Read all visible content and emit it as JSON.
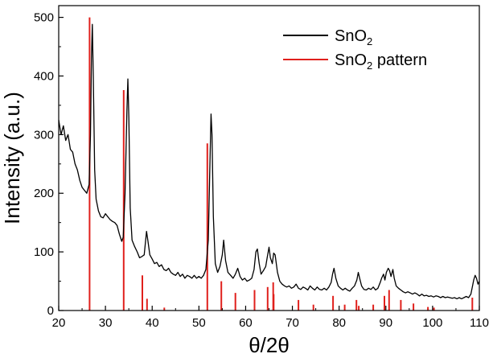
{
  "chart_data": {
    "type": "line",
    "xlabel": "θ/2θ",
    "ylabel": "Intensity (a.u.)",
    "xlim": [
      20,
      110
    ],
    "ylim": [
      0,
      520
    ],
    "xticks": [
      20,
      30,
      40,
      50,
      60,
      70,
      80,
      90,
      100,
      110
    ],
    "yticks": [
      0,
      100,
      200,
      300,
      400,
      500
    ],
    "grid": false,
    "legend": {
      "placement": "top-right",
      "entries": [
        {
          "series_index": 0,
          "name": "SnO",
          "subscript": "2",
          "suffix": ""
        },
        {
          "series_index": 1,
          "name": "SnO",
          "subscript": "2",
          "suffix": " pattern"
        }
      ]
    },
    "series": [
      {
        "name": "SnO2",
        "kind": "line",
        "color": "#000000",
        "points": [
          [
            20.0,
            325
          ],
          [
            20.5,
            300
          ],
          [
            21.0,
            315
          ],
          [
            21.5,
            290
          ],
          [
            22.0,
            300
          ],
          [
            22.5,
            275
          ],
          [
            23.0,
            270
          ],
          [
            23.5,
            250
          ],
          [
            24.0,
            240
          ],
          [
            24.5,
            222
          ],
          [
            25.0,
            210
          ],
          [
            25.5,
            205
          ],
          [
            26.0,
            200
          ],
          [
            26.5,
            215
          ],
          [
            26.8,
            300
          ],
          [
            27.0,
            430
          ],
          [
            27.2,
            488
          ],
          [
            27.4,
            400
          ],
          [
            27.7,
            240
          ],
          [
            28.0,
            190
          ],
          [
            28.5,
            170
          ],
          [
            29.0,
            160
          ],
          [
            29.5,
            158
          ],
          [
            30.0,
            165
          ],
          [
            30.5,
            160
          ],
          [
            31.0,
            155
          ],
          [
            31.5,
            152
          ],
          [
            32.0,
            150
          ],
          [
            32.5,
            145
          ],
          [
            33.0,
            130
          ],
          [
            33.5,
            118
          ],
          [
            33.8,
            125
          ],
          [
            34.2,
            200
          ],
          [
            34.6,
            340
          ],
          [
            34.8,
            395
          ],
          [
            35.0,
            330
          ],
          [
            35.3,
            175
          ],
          [
            35.7,
            120
          ],
          [
            36.2,
            110
          ],
          [
            36.8,
            100
          ],
          [
            37.3,
            90
          ],
          [
            37.8,
            92
          ],
          [
            38.3,
            95
          ],
          [
            38.8,
            135
          ],
          [
            39.1,
            118
          ],
          [
            39.5,
            95
          ],
          [
            40.0,
            88
          ],
          [
            40.5,
            80
          ],
          [
            41.0,
            82
          ],
          [
            41.5,
            75
          ],
          [
            42.0,
            78
          ],
          [
            42.5,
            70
          ],
          [
            43.0,
            68
          ],
          [
            43.5,
            72
          ],
          [
            44.0,
            65
          ],
          [
            44.5,
            62
          ],
          [
            45.0,
            60
          ],
          [
            45.5,
            65
          ],
          [
            46.0,
            58
          ],
          [
            46.5,
            62
          ],
          [
            47.0,
            55
          ],
          [
            47.5,
            60
          ],
          [
            48.0,
            58
          ],
          [
            48.5,
            55
          ],
          [
            49.0,
            60
          ],
          [
            49.5,
            55
          ],
          [
            50.0,
            58
          ],
          [
            50.5,
            55
          ],
          [
            51.0,
            60
          ],
          [
            51.5,
            70
          ],
          [
            52.0,
            120
          ],
          [
            52.3,
            230
          ],
          [
            52.6,
            335
          ],
          [
            52.8,
            300
          ],
          [
            53.1,
            160
          ],
          [
            53.5,
            80
          ],
          [
            54.0,
            65
          ],
          [
            54.5,
            75
          ],
          [
            55.0,
            95
          ],
          [
            55.3,
            120
          ],
          [
            55.7,
            85
          ],
          [
            56.2,
            65
          ],
          [
            56.8,
            60
          ],
          [
            57.3,
            55
          ],
          [
            57.8,
            62
          ],
          [
            58.3,
            72
          ],
          [
            58.8,
            58
          ],
          [
            59.3,
            52
          ],
          [
            59.8,
            55
          ],
          [
            60.3,
            50
          ],
          [
            60.8,
            52
          ],
          [
            61.3,
            55
          ],
          [
            61.8,
            70
          ],
          [
            62.2,
            100
          ],
          [
            62.5,
            105
          ],
          [
            62.9,
            80
          ],
          [
            63.3,
            62
          ],
          [
            63.8,
            68
          ],
          [
            64.3,
            75
          ],
          [
            64.6,
            90
          ],
          [
            65.0,
            108
          ],
          [
            65.3,
            90
          ],
          [
            65.7,
            80
          ],
          [
            66.0,
            98
          ],
          [
            66.3,
            95
          ],
          [
            66.8,
            65
          ],
          [
            67.3,
            50
          ],
          [
            67.8,
            45
          ],
          [
            68.3,
            42
          ],
          [
            68.8,
            40
          ],
          [
            69.3,
            42
          ],
          [
            69.8,
            38
          ],
          [
            70.3,
            40
          ],
          [
            70.8,
            45
          ],
          [
            71.3,
            38
          ],
          [
            71.8,
            36
          ],
          [
            72.3,
            40
          ],
          [
            72.8,
            38
          ],
          [
            73.3,
            35
          ],
          [
            73.8,
            42
          ],
          [
            74.3,
            38
          ],
          [
            74.8,
            35
          ],
          [
            75.3,
            40
          ],
          [
            75.8,
            36
          ],
          [
            76.3,
            35
          ],
          [
            76.8,
            38
          ],
          [
            77.3,
            35
          ],
          [
            77.8,
            40
          ],
          [
            78.3,
            48
          ],
          [
            78.6,
            62
          ],
          [
            78.9,
            72
          ],
          [
            79.3,
            55
          ],
          [
            79.8,
            42
          ],
          [
            80.3,
            38
          ],
          [
            80.8,
            35
          ],
          [
            81.3,
            38
          ],
          [
            81.8,
            35
          ],
          [
            82.3,
            33
          ],
          [
            82.8,
            38
          ],
          [
            83.3,
            42
          ],
          [
            83.8,
            52
          ],
          [
            84.1,
            65
          ],
          [
            84.4,
            55
          ],
          [
            84.8,
            42
          ],
          [
            85.3,
            36
          ],
          [
            85.8,
            35
          ],
          [
            86.3,
            38
          ],
          [
            86.8,
            36
          ],
          [
            87.3,
            40
          ],
          [
            87.8,
            35
          ],
          [
            88.3,
            38
          ],
          [
            88.8,
            48
          ],
          [
            89.1,
            55
          ],
          [
            89.5,
            62
          ],
          [
            89.8,
            52
          ],
          [
            90.1,
            65
          ],
          [
            90.5,
            72
          ],
          [
            90.8,
            68
          ],
          [
            91.1,
            58
          ],
          [
            91.5,
            70
          ],
          [
            91.8,
            55
          ],
          [
            92.2,
            42
          ],
          [
            92.7,
            38
          ],
          [
            93.2,
            35
          ],
          [
            93.7,
            32
          ],
          [
            94.2,
            30
          ],
          [
            94.7,
            32
          ],
          [
            95.2,
            30
          ],
          [
            95.7,
            28
          ],
          [
            96.2,
            30
          ],
          [
            96.7,
            28
          ],
          [
            97.2,
            25
          ],
          [
            97.7,
            28
          ],
          [
            98.2,
            25
          ],
          [
            98.7,
            26
          ],
          [
            99.2,
            24
          ],
          [
            99.7,
            25
          ],
          [
            100.2,
            23
          ],
          [
            100.7,
            25
          ],
          [
            101.2,
            24
          ],
          [
            101.7,
            22
          ],
          [
            102.2,
            24
          ],
          [
            102.7,
            22
          ],
          [
            103.2,
            23
          ],
          [
            103.7,
            22
          ],
          [
            104.2,
            21
          ],
          [
            104.7,
            22
          ],
          [
            105.2,
            20
          ],
          [
            105.7,
            22
          ],
          [
            106.2,
            20
          ],
          [
            106.7,
            22
          ],
          [
            107.2,
            24
          ],
          [
            107.7,
            22
          ],
          [
            108.2,
            28
          ],
          [
            108.5,
            40
          ],
          [
            108.8,
            52
          ],
          [
            109.1,
            60
          ],
          [
            109.4,
            55
          ],
          [
            109.7,
            45
          ],
          [
            110.0,
            50
          ]
        ]
      },
      {
        "name": "SnO2 pattern",
        "kind": "sticks",
        "color": "#e0201c",
        "sticks": [
          [
            26.6,
            500
          ],
          [
            33.9,
            376
          ],
          [
            37.9,
            60
          ],
          [
            38.9,
            20
          ],
          [
            42.6,
            5
          ],
          [
            51.8,
            285
          ],
          [
            54.8,
            50
          ],
          [
            57.8,
            30
          ],
          [
            61.9,
            35
          ],
          [
            64.7,
            40
          ],
          [
            65.9,
            48
          ],
          [
            66.0,
            28
          ],
          [
            71.3,
            18
          ],
          [
            74.5,
            10
          ],
          [
            78.7,
            25
          ],
          [
            81.2,
            10
          ],
          [
            83.7,
            18
          ],
          [
            84.2,
            8
          ],
          [
            87.3,
            10
          ],
          [
            89.7,
            25
          ],
          [
            90.7,
            35
          ],
          [
            93.2,
            18
          ],
          [
            95.9,
            12
          ],
          [
            99.0,
            6
          ],
          [
            100.3,
            5
          ],
          [
            108.5,
            22
          ]
        ]
      }
    ]
  }
}
